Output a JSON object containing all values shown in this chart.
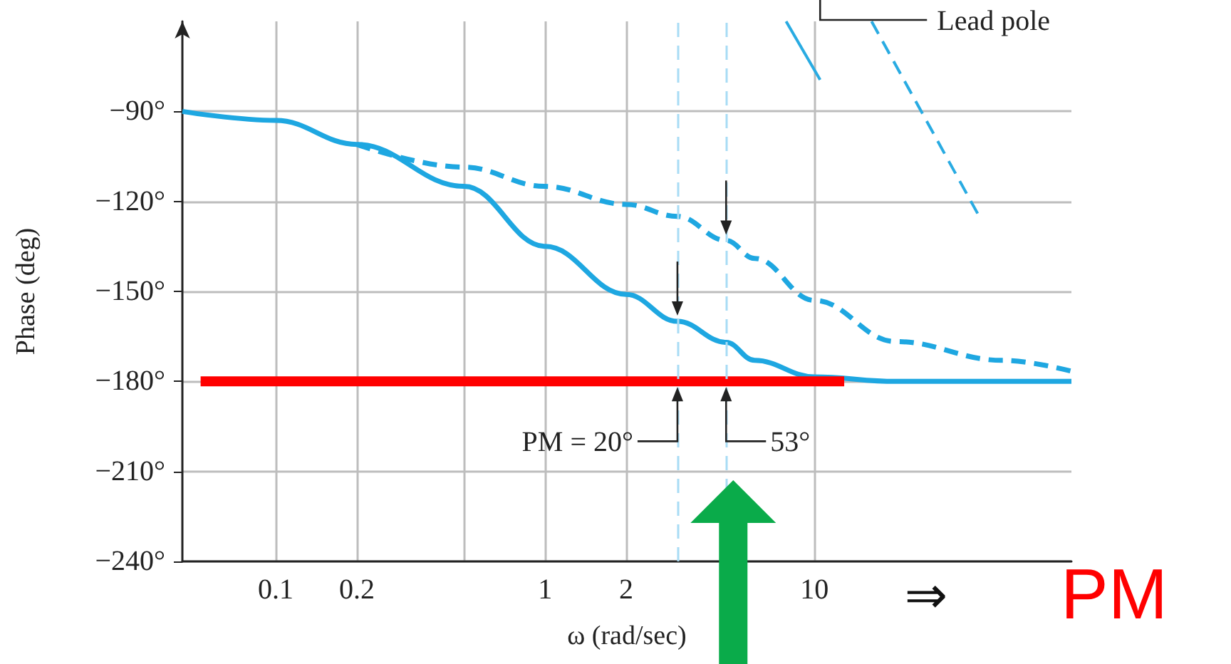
{
  "chart_data": {
    "type": "line",
    "xlabel": "ω (rad/sec)",
    "ylabel": "Phase (deg)",
    "log": "x",
    "grid": true,
    "marker": "none",
    "xlim": [
      0.045,
      90
    ],
    "ylim": [
      -240,
      -60
    ],
    "xticks": [
      0.1,
      0.2,
      {
        "value": 0.5,
        "label": null
      },
      1,
      2,
      10
    ],
    "yticks": [
      {
        "value": -240,
        "label": "−240°"
      },
      {
        "value": -210,
        "label": "−210°"
      },
      {
        "value": -180,
        "label": "−180°"
      },
      {
        "value": -150,
        "label": "−150°"
      },
      {
        "value": -120,
        "label": "−120°"
      },
      {
        "value": -90,
        "label": "−90°"
      }
    ],
    "series": [
      {
        "color": "#1ea7e1",
        "line_style": "solid",
        "x": [
          0.045,
          0.1,
          0.2,
          0.5,
          1,
          2,
          3.1,
          4.7,
          6,
          10,
          20,
          90
        ],
        "values": [
          -90,
          -93,
          -101,
          -115,
          -135,
          -151,
          -160,
          -167,
          -173,
          -178.5,
          -180,
          -180
        ]
      },
      {
        "color": "#1ea7e1",
        "line_style": "dashed",
        "x": [
          0.2,
          0.5,
          1,
          2,
          3.1,
          4.7,
          6,
          10,
          20,
          50,
          90
        ],
        "values": [
          -101,
          -108.6,
          -115,
          -121,
          -125,
          -133,
          -139,
          -153,
          -166.7,
          -173,
          -176.6
        ]
      },
      {
        "color": "#29abe2",
        "line_style": "solid",
        "x": [
          7.85,
          10.5
        ],
        "values": [
          -60,
          -79.5
        ]
      },
      {
        "color": "#29abe2",
        "line_style": "dashed",
        "x": [
          16.3,
          40.8
        ],
        "values": [
          -60,
          -124.8
        ]
      },
      {
        "color": "#ff0000",
        "line_style": "solid",
        "x": [
          0.0526,
          12.9
        ],
        "values": [
          -180,
          -180
        ]
      }
    ],
    "ref_lines": [
      {
        "axis": "x",
        "value": 3.1,
        "color": "#a8dcf5",
        "line_style": "dashed"
      },
      {
        "axis": "x",
        "value": 4.7,
        "color": "#a8dcf5",
        "line_style": "dashed"
      }
    ],
    "annotations": [
      {
        "text": "PM = 20°",
        "x": 3.1,
        "y": -180
      },
      {
        "text": "53°",
        "x": 4.7,
        "y": -180
      },
      "Lead pole",
      "⇒",
      "PM"
    ]
  }
}
